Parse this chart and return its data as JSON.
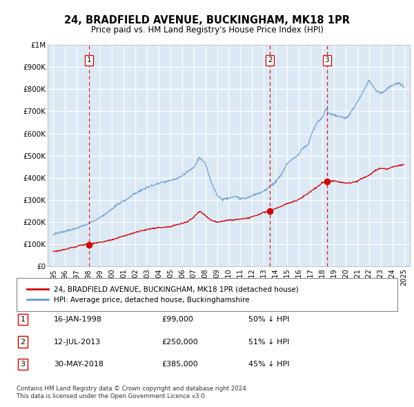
{
  "title": "24, BRADFIELD AVENUE, BUCKINGHAM, MK18 1PR",
  "subtitle": "Price paid vs. HM Land Registry's House Price Index (HPI)",
  "background_color": "#ffffff",
  "plot_bg_color": "#dce9f5",
  "grid_color": "#ffffff",
  "hpi_color": "#6699cc",
  "price_color": "#cc0000",
  "vline_color": "#cc0000",
  "ylabel_values": [
    0,
    100000,
    200000,
    300000,
    400000,
    500000,
    600000,
    700000,
    800000,
    900000,
    1000000
  ],
  "ylabel_labels": [
    "£0",
    "£100K",
    "£200K",
    "£300K",
    "£400K",
    "£500K",
    "£600K",
    "£700K",
    "£800K",
    "£900K",
    "£1M"
  ],
  "xmin": 1994.5,
  "xmax": 2025.5,
  "ymin": 0,
  "ymax": 1000000,
  "transactions": [
    {
      "num": 1,
      "date": "16-JAN-1998",
      "price": 99000,
      "pct": "50% ↓ HPI",
      "year": 1998.04
    },
    {
      "num": 2,
      "date": "12-JUL-2013",
      "price": 250000,
      "pct": "51% ↓ HPI",
      "year": 2013.53
    },
    {
      "num": 3,
      "date": "30-MAY-2018",
      "price": 385000,
      "pct": "45% ↓ HPI",
      "year": 2018.41
    }
  ],
  "legend_label_red": "24, BRADFIELD AVENUE, BUCKINGHAM, MK18 1PR (detached house)",
  "legend_label_blue": "HPI: Average price, detached house, Buckinghamshire",
  "footer1": "Contains HM Land Registry data © Crown copyright and database right 2024.",
  "footer2": "This data is licensed under the Open Government Licence v3.0.",
  "xticks": [
    1995,
    1996,
    1997,
    1998,
    1999,
    2000,
    2001,
    2002,
    2003,
    2004,
    2005,
    2006,
    2007,
    2008,
    2009,
    2010,
    2011,
    2012,
    2013,
    2014,
    2015,
    2016,
    2017,
    2018,
    2019,
    2020,
    2021,
    2022,
    2023,
    2024,
    2025
  ],
  "hpi_knots_x": [
    1995,
    1996,
    1997,
    1998,
    1999,
    2000,
    2001,
    2002,
    2003,
    2004,
    2005,
    2006,
    2007,
    2007.5,
    2008,
    2008.5,
    2009,
    2009.5,
    2010,
    2010.5,
    2011,
    2011.5,
    2012,
    2012.5,
    2013,
    2013.5,
    2014,
    2014.5,
    2015,
    2015.5,
    2016,
    2016.2,
    2016.5,
    2016.8,
    2017,
    2017.3,
    2017.6,
    2018,
    2018.3,
    2018.6,
    2019,
    2019.5,
    2020,
    2020.5,
    2021,
    2021.5,
    2022,
    2022.5,
    2023,
    2023.5,
    2024,
    2024.5,
    2025
  ],
  "hpi_knots_y": [
    148000,
    160000,
    175000,
    195000,
    220000,
    255000,
    295000,
    330000,
    355000,
    375000,
    385000,
    405000,
    445000,
    490000,
    460000,
    380000,
    320000,
    300000,
    310000,
    315000,
    308000,
    310000,
    320000,
    330000,
    345000,
    365000,
    385000,
    420000,
    470000,
    490000,
    510000,
    530000,
    545000,
    555000,
    590000,
    630000,
    660000,
    680000,
    720000,
    700000,
    690000,
    680000,
    670000,
    700000,
    740000,
    790000,
    840000,
    800000,
    780000,
    800000,
    820000,
    830000,
    810000
  ],
  "price_knots_x": [
    1995,
    1996,
    1997,
    1998.04,
    1999,
    2000,
    2001,
    2002,
    2003,
    2004,
    2005,
    2006,
    2006.5,
    2007,
    2007.5,
    2008,
    2008.5,
    2009,
    2009.5,
    2010,
    2010.5,
    2011,
    2012,
    2013,
    2013.53,
    2014,
    2015,
    2016,
    2017,
    2017.5,
    2018,
    2018.41,
    2019,
    2019.5,
    2020,
    2020.5,
    2021,
    2022,
    2022.5,
    2023,
    2023.5,
    2024,
    2024.5,
    2025
  ],
  "price_knots_y": [
    68000,
    75000,
    88000,
    99000,
    108000,
    120000,
    135000,
    150000,
    163000,
    172000,
    178000,
    190000,
    200000,
    220000,
    248000,
    230000,
    210000,
    200000,
    205000,
    210000,
    212000,
    215000,
    225000,
    245000,
    250000,
    262000,
    285000,
    305000,
    340000,
    358000,
    380000,
    385000,
    388000,
    385000,
    380000,
    382000,
    390000,
    415000,
    435000,
    445000,
    440000,
    450000,
    455000,
    460000
  ]
}
